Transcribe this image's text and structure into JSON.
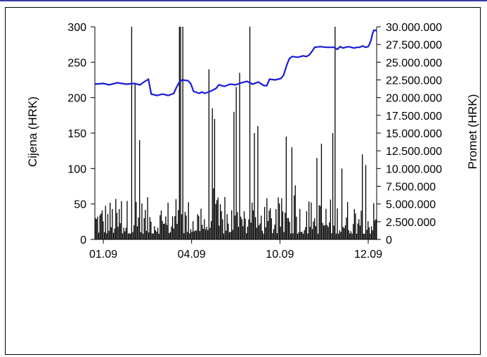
{
  "chart_data": {
    "type": "bar+line",
    "title": "",
    "xlabel": "",
    "ylabel_left": "Cijena (HRK)",
    "ylabel_right": "Promet (HRK)",
    "ylim_left": [
      0,
      300
    ],
    "ylim_right": [
      0,
      30000000
    ],
    "yticks_left": [
      0,
      50,
      100,
      150,
      200,
      250,
      300
    ],
    "yticks_right_labels": [
      "0",
      "2.500.000",
      "5.000.000",
      "7.500.000",
      "10.000.000",
      "12.500.000",
      "15.000.000",
      "17.500.000",
      "20.000.000",
      "22.500.000",
      "25.000.000",
      "27.500.000",
      "30.000.000"
    ],
    "yticks_right": [
      0,
      2500000,
      5000000,
      7500000,
      10000000,
      12500000,
      15000000,
      17500000,
      20000000,
      22500000,
      25000000,
      27500000,
      30000000
    ],
    "xticks": [
      "01.09",
      "04.09",
      "10.09",
      "12.09"
    ],
    "grid": false,
    "legend": "none",
    "colors": {
      "price_line": "#1a1adc",
      "volume_bars": "#000000"
    },
    "price_series": {
      "name": "",
      "anchors": [
        [
          0,
          219
        ],
        [
          0.03,
          220
        ],
        [
          0.05,
          218
        ],
        [
          0.08,
          221
        ],
        [
          0.11,
          219
        ],
        [
          0.14,
          220
        ],
        [
          0.16,
          218
        ],
        [
          0.17,
          221
        ],
        [
          0.19,
          226
        ],
        [
          0.2,
          205
        ],
        [
          0.22,
          203
        ],
        [
          0.24,
          205
        ],
        [
          0.26,
          203
        ],
        [
          0.28,
          206
        ],
        [
          0.29,
          215
        ],
        [
          0.3,
          222
        ],
        [
          0.31,
          225
        ],
        [
          0.33,
          224
        ],
        [
          0.34,
          220
        ],
        [
          0.35,
          209
        ],
        [
          0.37,
          206
        ],
        [
          0.38,
          208
        ],
        [
          0.39,
          206
        ],
        [
          0.41,
          209
        ],
        [
          0.43,
          213
        ],
        [
          0.44,
          218
        ],
        [
          0.46,
          216
        ],
        [
          0.48,
          219
        ],
        [
          0.5,
          218
        ],
        [
          0.52,
          221
        ],
        [
          0.54,
          223
        ],
        [
          0.56,
          219
        ],
        [
          0.58,
          222
        ],
        [
          0.6,
          217
        ],
        [
          0.61,
          217
        ],
        [
          0.62,
          226
        ],
        [
          0.64,
          225
        ],
        [
          0.66,
          227
        ],
        [
          0.67,
          232
        ],
        [
          0.68,
          245
        ],
        [
          0.69,
          255
        ],
        [
          0.7,
          258
        ],
        [
          0.72,
          257
        ],
        [
          0.74,
          259
        ],
        [
          0.75,
          258
        ],
        [
          0.76,
          260
        ],
        [
          0.77,
          265
        ],
        [
          0.78,
          271
        ],
        [
          0.8,
          272
        ],
        [
          0.82,
          271
        ],
        [
          0.84,
          271
        ],
        [
          0.85,
          271
        ],
        [
          0.86,
          268
        ],
        [
          0.87,
          272
        ],
        [
          0.88,
          270
        ],
        [
          0.9,
          272
        ],
        [
          0.92,
          270
        ],
        [
          0.93,
          271
        ],
        [
          0.94,
          271
        ],
        [
          0.95,
          273
        ],
        [
          0.96,
          271
        ],
        [
          0.97,
          272
        ],
        [
          0.975,
          276
        ],
        [
          0.98,
          281
        ],
        [
          0.985,
          290
        ],
        [
          0.99,
          295
        ],
        [
          0.995,
          295
        ],
        [
          1.0,
          294
        ]
      ]
    },
    "volume_series": {
      "name": "",
      "count": 248,
      "peaks_millions": [
        [
          0.128,
          30.0
        ],
        [
          0.142,
          22.0
        ],
        [
          0.156,
          14.0
        ],
        [
          0.298,
          30.0
        ],
        [
          0.305,
          30.0
        ],
        [
          0.31,
          30.0
        ],
        [
          0.405,
          24.0
        ],
        [
          0.415,
          18.5
        ],
        [
          0.425,
          17.0
        ],
        [
          0.492,
          18.0
        ],
        [
          0.5,
          21.5
        ],
        [
          0.515,
          23.5
        ],
        [
          0.552,
          30.0
        ],
        [
          0.566,
          15.0
        ],
        [
          0.58,
          16.0
        ],
        [
          0.68,
          14.5
        ],
        [
          0.7,
          13.0
        ],
        [
          0.79,
          11.5
        ],
        [
          0.805,
          13.5
        ],
        [
          0.848,
          15.0
        ],
        [
          0.856,
          30.0
        ],
        [
          0.88,
          10.0
        ],
        [
          0.95,
          12.0
        ],
        [
          0.965,
          10.5
        ]
      ]
    }
  }
}
